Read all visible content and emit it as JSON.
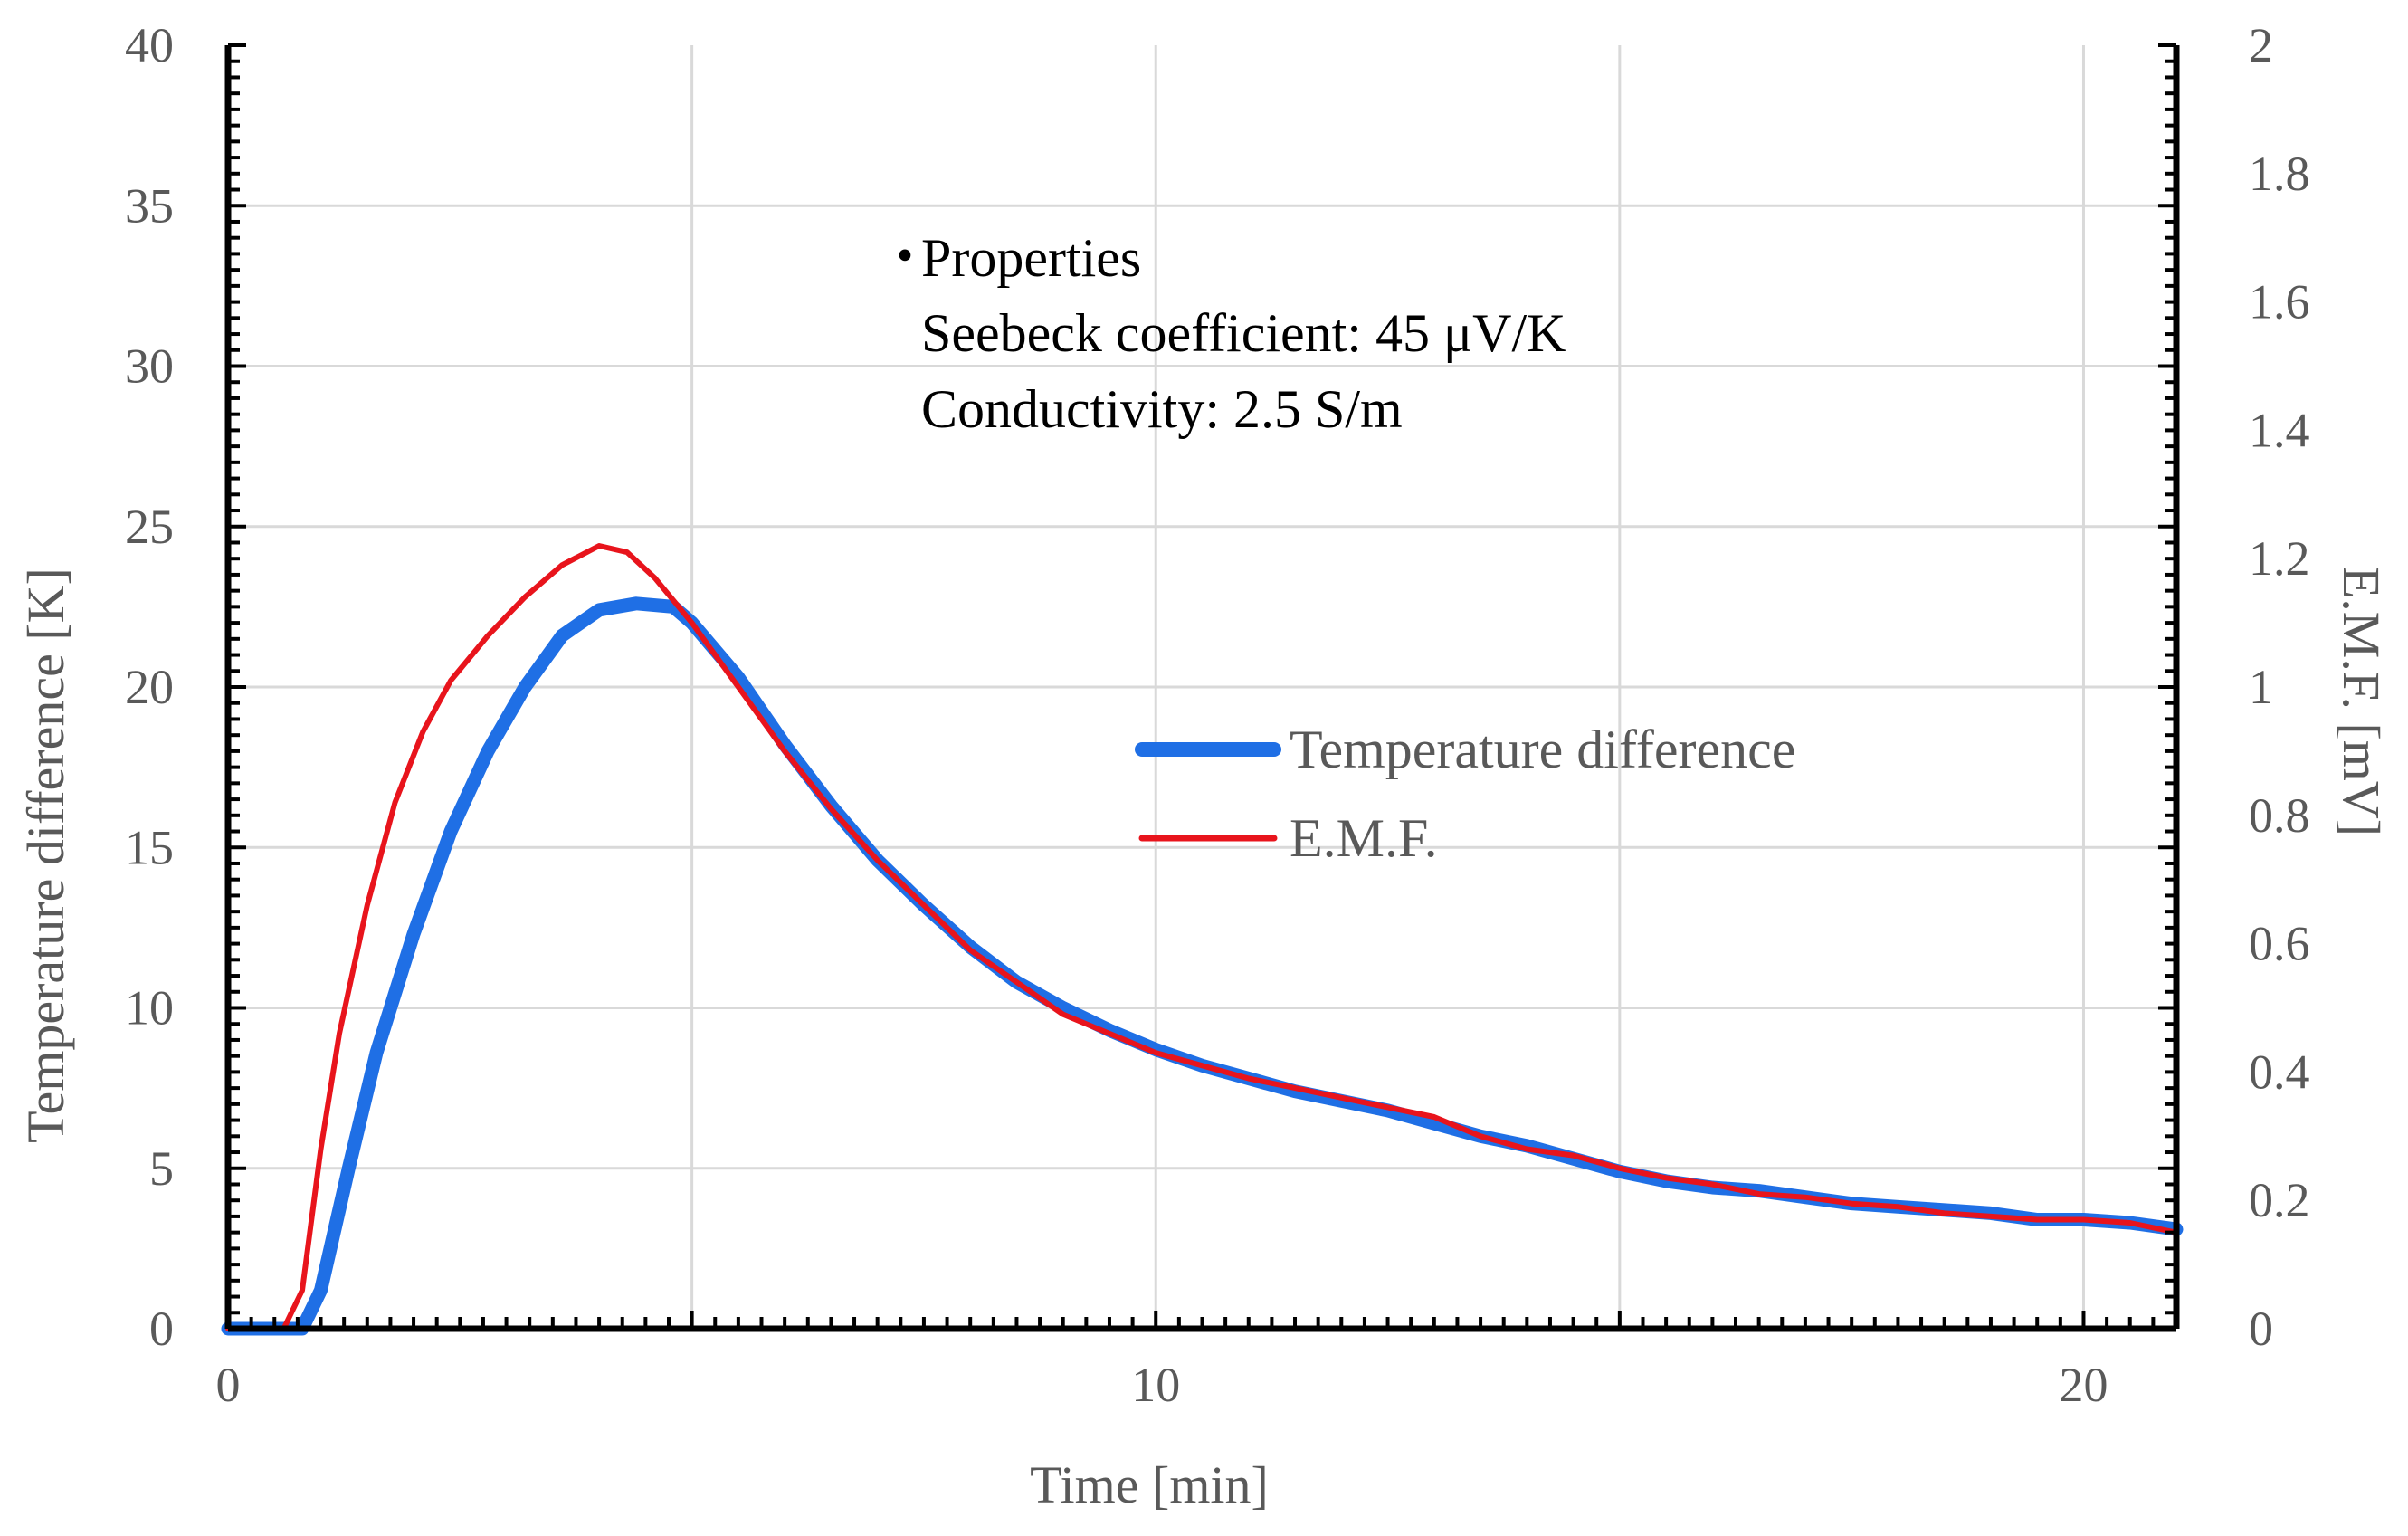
{
  "chart_data": {
    "type": "line",
    "title": "",
    "xlabel": "Time [min]",
    "ylabel": "Temperature difference [K]",
    "y2label": "E.M.F. [mV]",
    "xlim": [
      0,
      21
    ],
    "ylim": [
      0,
      40
    ],
    "y2lim": [
      0,
      2
    ],
    "xticks": [
      "0",
      "10",
      "20"
    ],
    "yticks": [
      "0",
      "5",
      "10",
      "15",
      "20",
      "25",
      "30",
      "35",
      "40"
    ],
    "y2ticks": [
      "0",
      "0.2",
      "0.4",
      "0.6",
      "0.8",
      "1",
      "1.2",
      "1.4",
      "1.6",
      "1.8",
      "2"
    ],
    "grid": true,
    "legend_position": "center-right",
    "annotation": {
      "bullet": "・",
      "lines": [
        "Properties",
        "Seebeck coefficient: 45 μV/K",
        "Conductivity: 2.5 S/m"
      ]
    },
    "series": [
      {
        "name": "Temperature difference",
        "axis": "left",
        "color": "#1f6fe5",
        "x": [
          0,
          0.8,
          1.0,
          1.3,
          1.6,
          2.0,
          2.4,
          2.8,
          3.2,
          3.6,
          4.0,
          4.4,
          4.8,
          5.0,
          5.5,
          6.0,
          6.5,
          7.0,
          7.5,
          8.0,
          8.5,
          9.0,
          9.5,
          10.0,
          10.5,
          11.0,
          11.5,
          12.0,
          12.5,
          13.0,
          13.5,
          14.0,
          14.5,
          15.0,
          15.5,
          16.0,
          16.5,
          17.0,
          17.5,
          18.0,
          18.5,
          19.0,
          19.5,
          20.0,
          20.5,
          21.0
        ],
        "values": [
          0,
          0,
          1.2,
          5.0,
          8.6,
          12.3,
          15.5,
          18.0,
          20.0,
          21.6,
          22.4,
          22.6,
          22.5,
          22.0,
          20.3,
          18.2,
          16.3,
          14.6,
          13.2,
          11.9,
          10.8,
          10.0,
          9.3,
          8.7,
          8.2,
          7.8,
          7.4,
          7.1,
          6.8,
          6.4,
          6.0,
          5.7,
          5.3,
          4.9,
          4.6,
          4.4,
          4.3,
          4.1,
          3.9,
          3.8,
          3.7,
          3.6,
          3.4,
          3.4,
          3.3,
          3.1
        ]
      },
      {
        "name": "E.M.F.",
        "axis": "right",
        "color": "#e8141c",
        "x": [
          0,
          0.6,
          0.8,
          1.0,
          1.2,
          1.5,
          1.8,
          2.1,
          2.4,
          2.8,
          3.2,
          3.6,
          4.0,
          4.3,
          4.6,
          5.0,
          5.5,
          6.0,
          6.5,
          7.0,
          7.5,
          8.0,
          8.5,
          9.0,
          9.5,
          10.0,
          10.5,
          11.0,
          11.5,
          12.0,
          12.5,
          13.0,
          13.5,
          14.0,
          14.5,
          15.0,
          15.5,
          16.0,
          16.5,
          17.0,
          17.5,
          18.0,
          18.5,
          19.0,
          19.5,
          20.0,
          20.5,
          21.0
        ],
        "values": [
          0,
          0,
          0.06,
          0.28,
          0.46,
          0.66,
          0.82,
          0.93,
          1.01,
          1.08,
          1.14,
          1.19,
          1.22,
          1.21,
          1.17,
          1.1,
          1.0,
          0.9,
          0.81,
          0.73,
          0.66,
          0.59,
          0.54,
          0.49,
          0.46,
          0.43,
          0.41,
          0.39,
          0.375,
          0.36,
          0.345,
          0.33,
          0.3,
          0.28,
          0.27,
          0.25,
          0.235,
          0.225,
          0.21,
          0.205,
          0.195,
          0.19,
          0.18,
          0.175,
          0.17,
          0.17,
          0.165,
          0.15
        ]
      }
    ]
  }
}
